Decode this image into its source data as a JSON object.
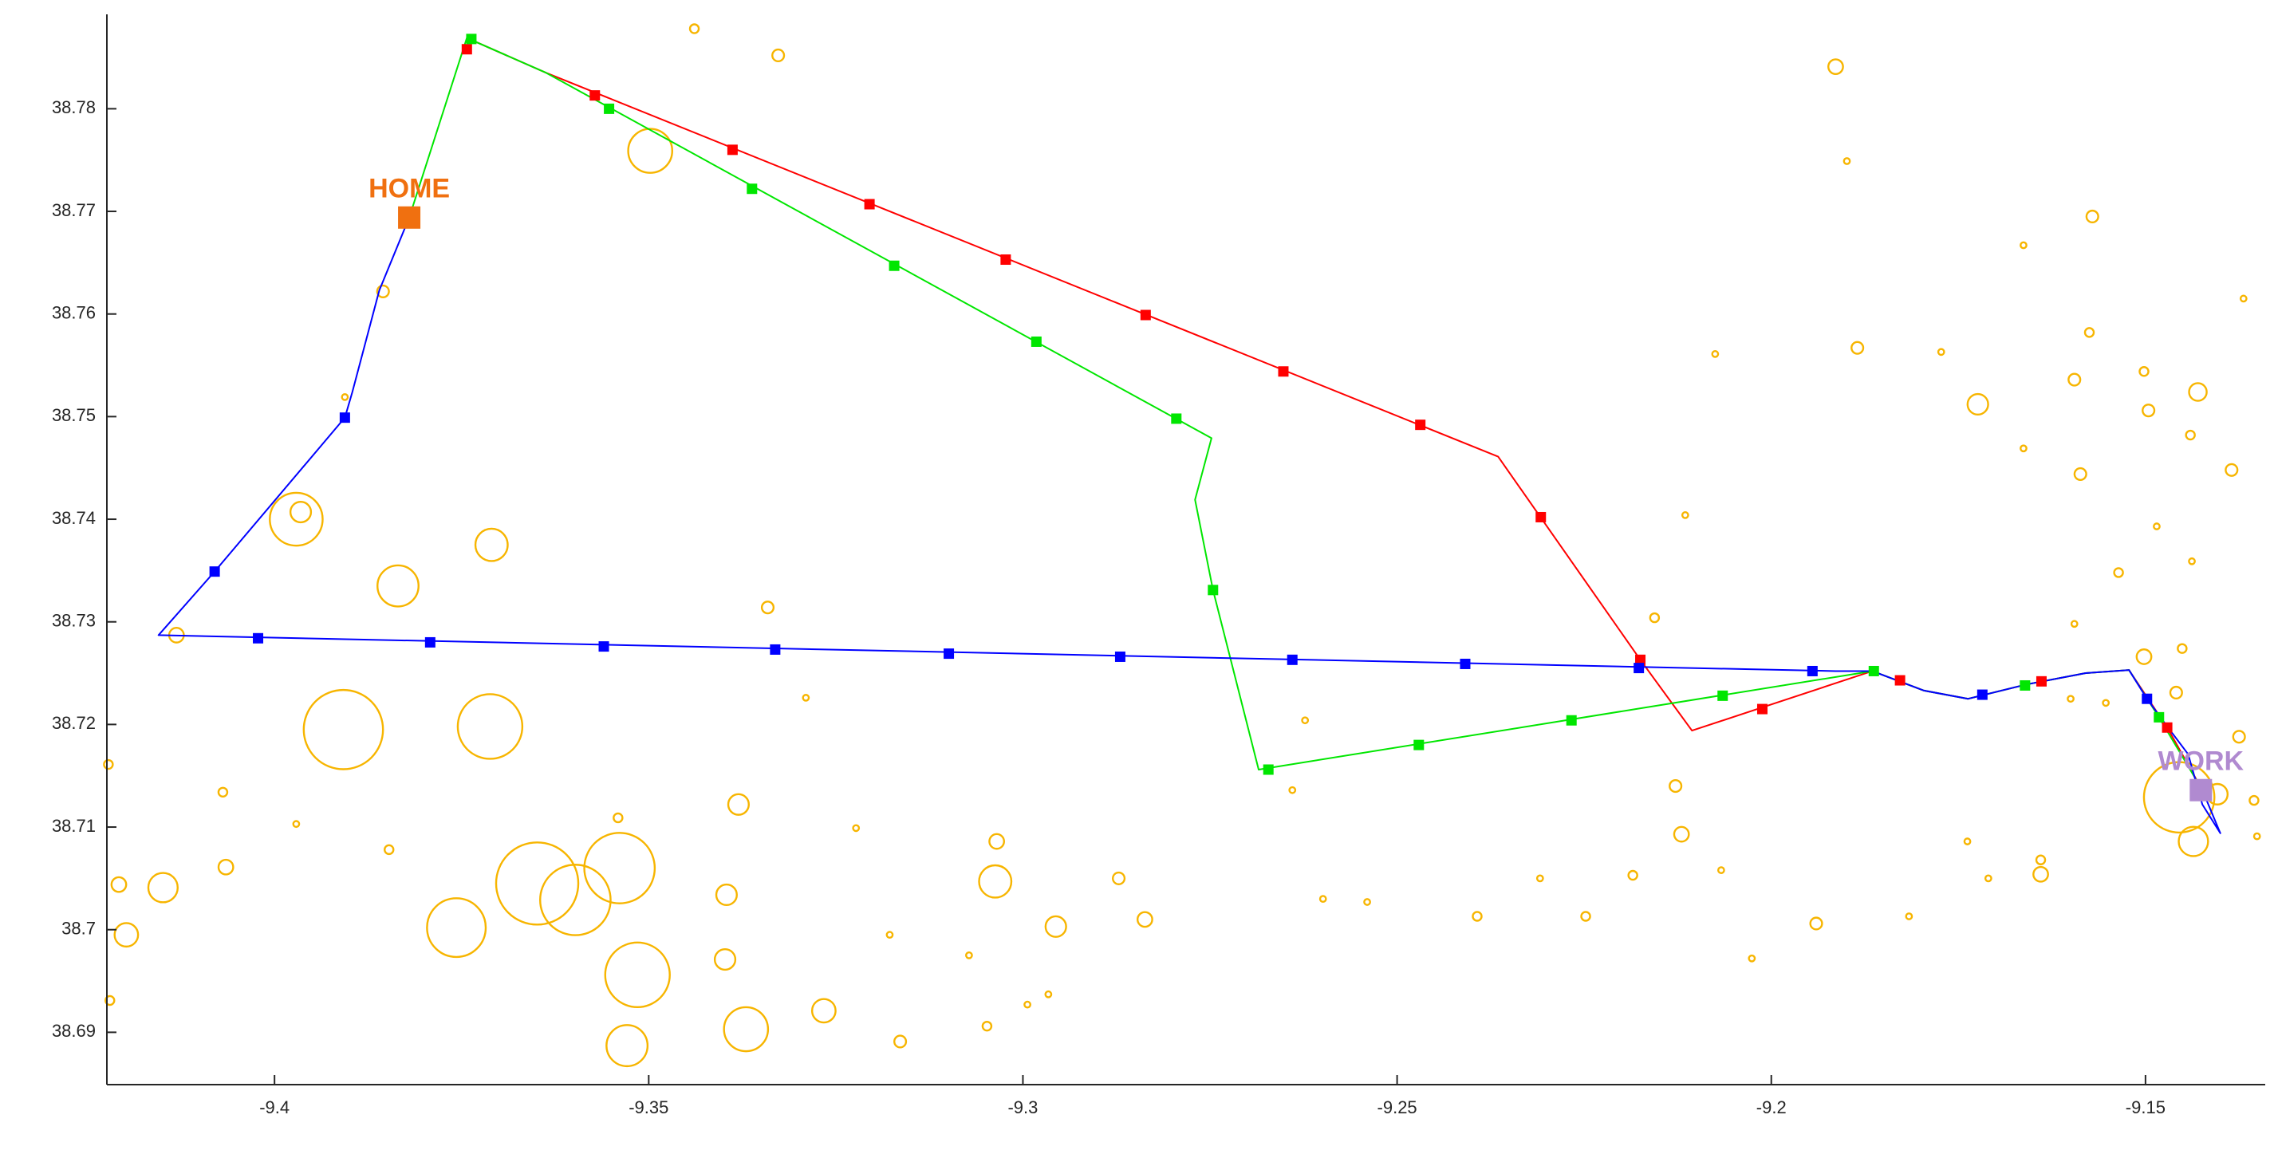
{
  "chart_data": {
    "type": "scatter",
    "xlim": [
      -9.4224,
      -9.134
    ],
    "ylim": [
      38.6849,
      38.7892
    ],
    "xticks": [
      -9.4,
      -9.35,
      -9.3,
      -9.25,
      -9.2,
      -9.15
    ],
    "yticks": [
      38.69,
      38.7,
      38.71,
      38.72,
      38.73,
      38.74,
      38.75,
      38.76,
      38.77,
      38.78
    ],
    "bubbles": {
      "color": "#f7b500",
      "x": [
        -9.3439,
        -9.3327,
        -9.3498,
        -9.1914,
        -9.1899,
        -9.1571,
        -9.1663,
        -9.1369,
        -9.2075,
        -9.1885,
        -9.1773,
        -9.1575,
        -9.1724,
        -9.1595,
        -9.1502,
        -9.143,
        -9.1496,
        -9.144,
        -9.1663,
        -9.1587,
        -9.1385,
        -9.2115,
        -9.1485,
        -9.1438,
        -9.3971,
        -9.3965,
        -9.371,
        -9.3835,
        -9.3341,
        -9.2156,
        -9.1536,
        -9.1595,
        -9.1451,
        -9.1502,
        -9.1459,
        -9.4131,
        -9.3908,
        -9.3712,
        -9.329,
        -9.2623,
        -9.16,
        -9.1553,
        -9.1375,
        -9.1455,
        -9.1404,
        -9.1355,
        -9.1436,
        -9.2128,
        -9.212,
        -9.2185,
        -9.2067,
        -9.164,
        -9.164,
        -9.171,
        -9.1816,
        -9.194,
        -9.2026,
        -9.4069,
        -9.3971,
        -9.3847,
        -9.338,
        -9.3541,
        -9.3223,
        -9.3035,
        -9.4065,
        -9.3037,
        -9.2872,
        -9.2837,
        -9.2956,
        -9.4149,
        -9.4208,
        -9.4198,
        -9.3649,
        -9.3598,
        -9.3539,
        -9.3757,
        -9.3396,
        -9.3398,
        -9.3515,
        -9.3529,
        -9.337,
        -9.3266,
        -9.3178,
        -9.3072,
        -9.2994,
        -9.2966,
        -9.3048,
        -9.3164,
        -9.2599,
        -9.254,
        -9.2393,
        -9.2309,
        -9.2248,
        -9.264,
        -9.1351,
        -9.422,
        -9.4222,
        -9.1738,
        -9.3855,
        -9.3906
      ],
      "y": [
        38.7878,
        38.7852,
        38.7759,
        38.7841,
        38.7749,
        38.7695,
        38.7667,
        38.7615,
        38.7561,
        38.7567,
        38.7563,
        38.7582,
        38.7512,
        38.7536,
        38.7544,
        38.7524,
        38.7506,
        38.7482,
        38.7469,
        38.7444,
        38.7448,
        38.7404,
        38.7393,
        38.7359,
        38.74,
        38.7407,
        38.7375,
        38.7335,
        38.7314,
        38.7304,
        38.7348,
        38.7298,
        38.7274,
        38.7266,
        38.7231,
        38.7287,
        38.7195,
        38.7198,
        38.7226,
        38.7204,
        38.7225,
        38.7221,
        38.7188,
        38.7129,
        38.7132,
        38.7126,
        38.7086,
        38.714,
        38.7093,
        38.7053,
        38.7058,
        38.7068,
        38.7054,
        38.705,
        38.7013,
        38.7006,
        38.6972,
        38.7134,
        38.7103,
        38.7078,
        38.7122,
        38.7109,
        38.7099,
        38.7086,
        38.7061,
        38.7047,
        38.705,
        38.701,
        38.7003,
        38.7041,
        38.7044,
        38.6995,
        38.7045,
        38.7029,
        38.706,
        38.7002,
        38.7034,
        38.6971,
        38.6956,
        38.6887,
        38.6903,
        38.6921,
        38.6995,
        38.6975,
        38.6927,
        38.6937,
        38.6906,
        38.6891,
        38.703,
        38.7027,
        38.7013,
        38.705,
        38.7013,
        38.7136,
        38.7091,
        38.6931,
        38.7161,
        38.7086,
        38.7622,
        38.7519
      ],
      "sizes": [
        3,
        4,
        15,
        5,
        2,
        4,
        2,
        2,
        2,
        4,
        2,
        3,
        7,
        4,
        3,
        6,
        4,
        3,
        2,
        4,
        4,
        2,
        2,
        2,
        18,
        7,
        11,
        14,
        4,
        3,
        3,
        2,
        3,
        5,
        4,
        5,
        27,
        22,
        2,
        2,
        2,
        2,
        4,
        24,
        7,
        3,
        10,
        4,
        5,
        3,
        2,
        3,
        5,
        2,
        2,
        4,
        2,
        3,
        2,
        3,
        7,
        3,
        2,
        5,
        5,
        11,
        4,
        5,
        7,
        10,
        5,
        8,
        28,
        24,
        24,
        20,
        7,
        7,
        22,
        14,
        15,
        8,
        2,
        2,
        2,
        2,
        3,
        4,
        2,
        2,
        3,
        2,
        3,
        2,
        2,
        3,
        3,
        2,
        4,
        2
      ]
    },
    "series": [
      {
        "color": "#ff0000",
        "x": [
          -9.3743,
          -9.3637,
          -9.2365,
          -9.2175,
          -9.2106,
          -9.1865,
          -9.1796,
          -9.1737,
          -9.1659,
          -9.158,
          -9.1522,
          -9.1471,
          -9.1424
        ],
        "y": [
          38.7869,
          38.7835,
          38.7461,
          38.7263,
          38.7194,
          38.7252,
          38.7233,
          38.7225,
          38.7239,
          38.725,
          38.7253,
          38.7197,
          38.7136
        ],
        "marker_x": [
          -9.3743,
          -9.3572,
          -9.3388,
          -9.3205,
          -9.3023,
          -9.2836,
          -9.2652,
          -9.2469,
          -9.2308,
          -9.2175,
          -9.2012,
          -9.1828,
          -9.1639,
          -9.1471
        ],
        "marker_y": [
          38.7858,
          38.7813,
          38.776,
          38.7707,
          38.7653,
          38.7599,
          38.7544,
          38.7492,
          38.7402,
          38.7263,
          38.7215,
          38.7243,
          38.7242,
          38.7197
        ]
      },
      {
        "color": "#00e600",
        "x": [
          -9.382,
          -9.3743,
          -9.3637,
          -9.2748,
          -9.277,
          -9.2746,
          -9.2685,
          -9.1865,
          -9.1796,
          -9.1737,
          -9.1659,
          -9.158,
          -9.1522,
          -9.1482,
          -9.1424
        ],
        "y": [
          38.7694,
          38.7869,
          38.7835,
          38.7479,
          38.7419,
          38.7331,
          38.7156,
          38.7252,
          38.7233,
          38.7225,
          38.7239,
          38.725,
          38.7253,
          38.7207,
          38.7136
        ],
        "marker_x": [
          -9.3737,
          -9.3553,
          -9.3362,
          -9.3172,
          -9.2982,
          -9.2795,
          -9.2746,
          -9.2672,
          -9.2471,
          -9.2267,
          -9.2065,
          -9.1863,
          -9.1661,
          -9.1482
        ],
        "marker_y": [
          38.7868,
          38.78,
          38.7722,
          38.7647,
          38.7573,
          38.7498,
          38.7331,
          38.7156,
          38.718,
          38.7204,
          38.7228,
          38.7252,
          38.7238,
          38.7207
        ]
      },
      {
        "color": "#0000ff",
        "x": [
          -9.382,
          -9.386,
          -9.3896,
          -9.3906,
          -9.408,
          -9.4155,
          -9.1914,
          -9.1865,
          -9.1796,
          -9.1737,
          -9.1659,
          -9.158,
          -9.1522,
          -9.1498,
          -9.1473,
          -9.1443,
          -9.1424,
          -9.14,
          -9.1424
        ],
        "y": [
          38.7694,
          38.7623,
          38.7524,
          38.7499,
          38.7349,
          38.7287,
          38.7252,
          38.7252,
          38.7233,
          38.7225,
          38.7239,
          38.725,
          38.7253,
          38.7225,
          38.72,
          38.7171,
          38.7122,
          38.7094,
          38.7136
        ],
        "marker_x": [
          -9.408,
          -9.3906,
          -9.4022,
          -9.3792,
          -9.356,
          -9.3331,
          -9.3099,
          -9.287,
          -9.264,
          -9.2409,
          -9.2177,
          -9.1945,
          -9.1718,
          -9.1498
        ],
        "marker_y": [
          38.7349,
          38.7499,
          38.7284,
          38.728,
          38.7276,
          38.7273,
          38.7269,
          38.7266,
          38.7263,
          38.7259,
          38.7255,
          38.7252,
          38.7229,
          38.7225
        ]
      }
    ],
    "points": [
      {
        "label": "HOME",
        "color": "#f07010",
        "x": -9.382,
        "y": 38.7694
      },
      {
        "label": "WORK",
        "color": "#b08ad0",
        "x": -9.1426,
        "y": 38.7136
      }
    ]
  }
}
